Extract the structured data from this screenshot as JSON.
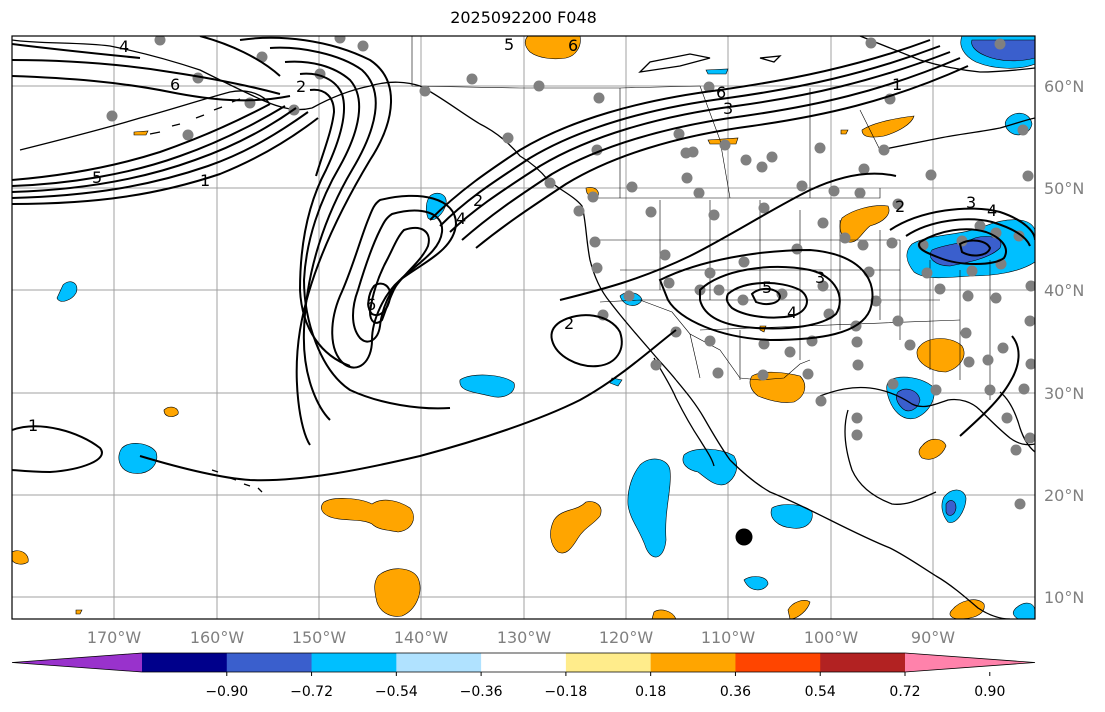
{
  "title": "2025092200 F048",
  "map": {
    "lon_labels": [
      "170°W",
      "160°W",
      "150°W",
      "140°W",
      "130°W",
      "120°W",
      "110°W",
      "100°W",
      "90°W"
    ],
    "lat_labels": [
      "60°N",
      "50°N",
      "40°N",
      "30°N",
      "20°N",
      "10°N"
    ],
    "contour_labels": [
      {
        "id": "c4-nw",
        "text": "4"
      },
      {
        "id": "c6-nw",
        "text": "6"
      },
      {
        "id": "c2-nw",
        "text": "2"
      },
      {
        "id": "c5-w",
        "text": "5"
      },
      {
        "id": "c1-w",
        "text": "1"
      },
      {
        "id": "c1-sw",
        "text": "1"
      },
      {
        "id": "c6-mid",
        "text": "6"
      },
      {
        "id": "c4-mid",
        "text": "4"
      },
      {
        "id": "c2-mid",
        "text": "2"
      },
      {
        "id": "c2-cal",
        "text": "2"
      },
      {
        "id": "c5-top",
        "text": "5"
      },
      {
        "id": "c6-top",
        "text": "6"
      },
      {
        "id": "c6-can",
        "text": "6"
      },
      {
        "id": "c3-can",
        "text": "3"
      },
      {
        "id": "c1-ne",
        "text": "1"
      },
      {
        "id": "c5-co",
        "text": "5"
      },
      {
        "id": "c3-co",
        "text": "3"
      },
      {
        "id": "c4-co",
        "text": "4"
      },
      {
        "id": "c2-gl",
        "text": "2"
      },
      {
        "id": "c3-gl",
        "text": "3"
      },
      {
        "id": "c4-gl",
        "text": "4"
      }
    ]
  },
  "colorbar": {
    "colors": [
      "#9932cc",
      "#00008b",
      "#3a5fcd",
      "#00bfff",
      "#b0e2ff",
      "#ffffff",
      "#ffec8b",
      "#ffa500",
      "#ff4500",
      "#b22222",
      "#ff82ab"
    ],
    "tick_labels": [
      "−0.90",
      "−0.72",
      "−0.54",
      "−0.36",
      "−0.18",
      "0.18",
      "0.36",
      "0.54",
      "0.72",
      "0.90"
    ]
  }
}
